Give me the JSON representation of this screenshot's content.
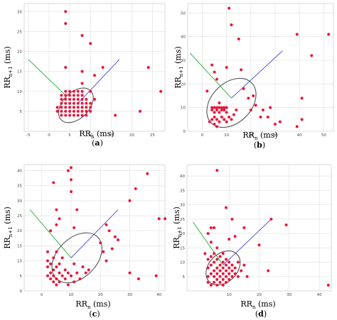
{
  "colors": {
    "point": "#e8173b",
    "green_line": "#3ab54a",
    "blue_line": "#5a5adf",
    "ellipse": "#555555",
    "grid": "#e6e6e6"
  },
  "chart_data": [
    {
      "type": "scatter",
      "caption_prefix": "(",
      "caption_letter": "a",
      "caption_suffix": ")",
      "xlabel": {
        "main": "RR",
        "sub": "n",
        "unit": " (ms)"
      },
      "ylabel": {
        "main": "RR",
        "sub": "n+1",
        "unit": " (ms)"
      },
      "xlim": [
        -6,
        28
      ],
      "ylim": [
        0,
        32
      ],
      "xticks": [
        -5,
        0,
        5,
        10,
        15,
        20,
        25
      ],
      "yticks": [
        5,
        10,
        15,
        20,
        25,
        30
      ],
      "grid": true,
      "green_line": [
        [
          -5,
          18
        ],
        [
          4,
          9
        ]
      ],
      "blue_line": [
        [
          7,
          7
        ],
        [
          17,
          18
        ]
      ],
      "ellipse": {
        "cx": 6.5,
        "cy": 6.5,
        "rx": 5,
        "ry": 4
      },
      "points": [
        [
          4,
          30
        ],
        [
          4,
          27
        ],
        [
          8,
          24
        ],
        [
          10,
          22
        ],
        [
          4,
          16
        ],
        [
          8,
          15
        ],
        [
          11,
          14
        ],
        [
          13,
          16
        ],
        [
          24,
          16
        ],
        [
          27,
          10
        ],
        [
          22,
          5
        ],
        [
          16,
          4
        ],
        [
          8,
          12
        ],
        [
          3,
          4
        ],
        [
          3,
          5
        ],
        [
          3,
          6
        ],
        [
          3,
          7
        ],
        [
          3,
          8
        ],
        [
          3,
          9
        ],
        [
          4,
          4
        ],
        [
          4,
          5
        ],
        [
          4,
          6
        ],
        [
          4,
          7
        ],
        [
          4,
          8
        ],
        [
          4,
          9
        ],
        [
          4,
          10
        ],
        [
          5,
          4
        ],
        [
          5,
          5
        ],
        [
          5,
          6
        ],
        [
          5,
          7
        ],
        [
          5,
          8
        ],
        [
          5,
          9
        ],
        [
          5,
          10
        ],
        [
          6,
          4
        ],
        [
          6,
          5
        ],
        [
          6,
          6
        ],
        [
          6,
          7
        ],
        [
          6,
          8
        ],
        [
          6,
          9
        ],
        [
          6,
          10
        ],
        [
          7,
          4
        ],
        [
          7,
          5
        ],
        [
          7,
          6
        ],
        [
          7,
          7
        ],
        [
          7,
          8
        ],
        [
          7,
          9
        ],
        [
          7,
          10
        ],
        [
          8,
          4
        ],
        [
          8,
          5
        ],
        [
          8,
          6
        ],
        [
          8,
          7
        ],
        [
          8,
          8
        ],
        [
          8,
          9
        ],
        [
          8,
          10
        ],
        [
          9,
          4
        ],
        [
          9,
          5
        ],
        [
          9,
          6
        ],
        [
          9,
          7
        ],
        [
          9,
          8
        ],
        [
          10,
          5
        ],
        [
          10,
          6
        ],
        [
          10,
          7
        ],
        [
          2,
          5
        ],
        [
          2,
          6
        ],
        [
          10,
          10
        ],
        [
          11,
          8
        ]
      ]
    },
    {
      "type": "scatter",
      "caption_prefix": "(",
      "caption_letter": "b",
      "caption_suffix": ")",
      "xlabel": {
        "main": "RR",
        "sub": "n",
        "unit": " (ms)"
      },
      "ylabel": {
        "main": "RR",
        "sub": "n+1",
        "unit": " (ms)"
      },
      "xlim": [
        -6,
        54
      ],
      "ylim": [
        0,
        54
      ],
      "xticks": [
        0,
        10,
        20,
        30,
        40,
        50
      ],
      "yticks": [
        0,
        10,
        20,
        30,
        40,
        50
      ],
      "grid": true,
      "green_line": [
        [
          -5,
          33
        ],
        [
          12,
          14
        ]
      ],
      "blue_line": [
        [
          12,
          14
        ],
        [
          33,
          34
        ]
      ],
      "ellipse": {
        "cx": 12,
        "cy": 12,
        "rx": 10,
        "ry": 12
      },
      "points": [
        [
          11,
          52
        ],
        [
          12,
          45
        ],
        [
          15,
          39
        ],
        [
          39,
          41
        ],
        [
          52,
          41
        ],
        [
          45,
          32
        ],
        [
          10,
          27
        ],
        [
          4,
          28
        ],
        [
          5,
          25
        ],
        [
          6,
          22
        ],
        [
          2,
          17
        ],
        [
          16,
          26
        ],
        [
          17,
          18
        ],
        [
          41,
          14
        ],
        [
          41,
          5
        ],
        [
          39,
          2
        ],
        [
          20,
          9
        ],
        [
          24,
          6
        ],
        [
          30,
          3
        ],
        [
          27,
          6
        ],
        [
          28,
          10
        ],
        [
          32,
          4
        ],
        [
          25,
          9
        ],
        [
          22,
          11
        ],
        [
          21,
          15
        ],
        [
          19,
          14
        ],
        [
          4,
          10
        ],
        [
          4,
          9
        ],
        [
          5,
          8
        ],
        [
          5,
          10
        ],
        [
          6,
          10
        ],
        [
          6,
          9
        ],
        [
          7,
          10
        ],
        [
          7,
          8
        ],
        [
          8,
          10
        ],
        [
          8,
          9
        ],
        [
          9,
          10
        ],
        [
          9,
          9
        ],
        [
          10,
          10
        ],
        [
          10,
          8
        ],
        [
          5,
          6
        ],
        [
          6,
          5
        ],
        [
          7,
          4
        ],
        [
          8,
          6
        ],
        [
          9,
          5
        ],
        [
          10,
          4
        ],
        [
          11,
          6
        ],
        [
          12,
          5
        ],
        [
          13,
          7
        ],
        [
          5,
          3
        ],
        [
          6,
          2
        ],
        [
          3,
          4
        ],
        [
          4,
          5
        ],
        [
          14,
          9
        ],
        [
          7,
          12
        ]
      ]
    },
    {
      "type": "scatter",
      "caption_prefix": "(",
      "caption_letter": "c",
      "caption_suffix": ")",
      "xlabel": {
        "main": "RR",
        "sub": "n",
        "unit": " (ms)"
      },
      "ylabel": {
        "main": "RR",
        "sub": "n+1",
        "unit": " (ms)"
      },
      "xlim": [
        -6,
        42
      ],
      "ylim": [
        0,
        42
      ],
      "xticks": [
        0,
        10,
        20,
        30,
        40
      ],
      "yticks": [
        0,
        5,
        10,
        15,
        20,
        25,
        30,
        35,
        40
      ],
      "grid": true,
      "green_line": [
        [
          -4,
          27
        ],
        [
          10,
          11
        ]
      ],
      "blue_line": [
        [
          10,
          11
        ],
        [
          26,
          27
        ]
      ],
      "ellipse": {
        "cx": 12,
        "cy": 11,
        "rx": 10,
        "ry": 8
      },
      "points": [
        [
          10,
          41
        ],
        [
          9,
          40
        ],
        [
          10,
          37
        ],
        [
          10,
          33
        ],
        [
          4,
          36
        ],
        [
          5,
          27
        ],
        [
          6,
          24
        ],
        [
          5,
          22
        ],
        [
          3,
          20
        ],
        [
          11,
          21
        ],
        [
          12,
          27
        ],
        [
          36,
          39
        ],
        [
          32,
          34
        ],
        [
          30,
          30
        ],
        [
          40,
          24
        ],
        [
          42,
          24
        ],
        [
          22,
          22
        ],
        [
          23,
          20
        ],
        [
          25,
          18
        ],
        [
          26,
          17
        ],
        [
          24,
          14
        ],
        [
          20,
          16
        ],
        [
          21,
          13
        ],
        [
          22,
          10
        ],
        [
          30,
          6
        ],
        [
          33,
          4
        ],
        [
          39,
          5
        ],
        [
          2,
          13
        ],
        [
          2,
          10
        ],
        [
          2,
          8
        ],
        [
          2,
          5
        ],
        [
          3,
          4
        ],
        [
          3,
          6
        ],
        [
          3,
          9
        ],
        [
          4,
          3
        ],
        [
          4,
          5
        ],
        [
          4,
          7
        ],
        [
          4,
          11
        ],
        [
          5,
          2
        ],
        [
          5,
          4
        ],
        [
          5,
          8
        ],
        [
          5,
          13
        ],
        [
          6,
          3
        ],
        [
          6,
          6
        ],
        [
          6,
          9
        ],
        [
          7,
          5
        ],
        [
          7,
          11
        ],
        [
          8,
          4
        ],
        [
          8,
          7
        ],
        [
          9,
          2
        ],
        [
          9,
          6
        ],
        [
          10,
          5
        ],
        [
          11,
          3
        ],
        [
          11,
          9
        ],
        [
          12,
          6
        ],
        [
          13,
          4
        ],
        [
          14,
          8
        ],
        [
          15,
          6
        ],
        [
          16,
          7
        ]
      ]
    },
    {
      "type": "scatter",
      "caption_prefix": "(",
      "caption_letter": "d",
      "caption_suffix": ")",
      "xlabel": {
        "main": "RR",
        "sub": "n",
        "unit": " (ms)"
      },
      "ylabel": {
        "main": "RR",
        "sub": "n+1",
        "unit": " (ms)"
      },
      "xlim": [
        -4,
        44
      ],
      "ylim": [
        0,
        44
      ],
      "xticks": [
        10,
        20,
        30,
        40
      ],
      "yticks": [
        5,
        10,
        15,
        20,
        25,
        30,
        35,
        40
      ],
      "grid": true,
      "green_line": [
        [
          -2,
          24
        ],
        [
          8,
          9
        ]
      ],
      "blue_line": [
        [
          8,
          9
        ],
        [
          24,
          25
        ]
      ],
      "ellipse": {
        "cx": 8,
        "cy": 8,
        "rx": 6.5,
        "ry": 6
      },
      "points": [
        [
          6,
          42
        ],
        [
          9,
          29
        ],
        [
          11,
          25
        ],
        [
          24,
          25
        ],
        [
          29,
          23
        ],
        [
          15,
          22
        ],
        [
          4,
          22
        ],
        [
          5,
          22
        ],
        [
          3,
          20
        ],
        [
          12,
          19
        ],
        [
          10,
          18
        ],
        [
          20,
          16
        ],
        [
          43,
          2
        ],
        [
          4,
          17
        ],
        [
          6,
          15
        ],
        [
          2,
          13
        ],
        [
          3,
          11
        ],
        [
          3,
          8
        ],
        [
          3,
          5
        ],
        [
          3,
          3
        ],
        [
          4,
          2
        ],
        [
          4,
          6
        ],
        [
          4,
          9
        ],
        [
          4,
          12
        ],
        [
          5,
          3
        ],
        [
          5,
          5
        ],
        [
          5,
          7
        ],
        [
          5,
          10
        ],
        [
          5,
          13
        ],
        [
          6,
          2
        ],
        [
          6,
          4
        ],
        [
          6,
          6
        ],
        [
          6,
          8
        ],
        [
          6,
          11
        ],
        [
          7,
          3
        ],
        [
          7,
          5
        ],
        [
          7,
          7
        ],
        [
          7,
          9
        ],
        [
          7,
          12
        ],
        [
          8,
          2
        ],
        [
          8,
          4
        ],
        [
          8,
          6
        ],
        [
          8,
          8
        ],
        [
          8,
          10
        ],
        [
          8,
          13
        ],
        [
          9,
          3
        ],
        [
          9,
          5
        ],
        [
          9,
          7
        ],
        [
          9,
          9
        ],
        [
          9,
          11
        ],
        [
          10,
          4
        ],
        [
          10,
          6
        ],
        [
          10,
          8
        ],
        [
          10,
          10
        ],
        [
          11,
          5
        ],
        [
          11,
          7
        ],
        [
          11,
          9
        ],
        [
          12,
          6
        ],
        [
          12,
          8
        ],
        [
          13,
          5
        ],
        [
          13,
          10
        ],
        [
          14,
          7
        ],
        [
          15,
          9
        ],
        [
          23,
          7
        ],
        [
          16,
          5
        ]
      ]
    }
  ]
}
